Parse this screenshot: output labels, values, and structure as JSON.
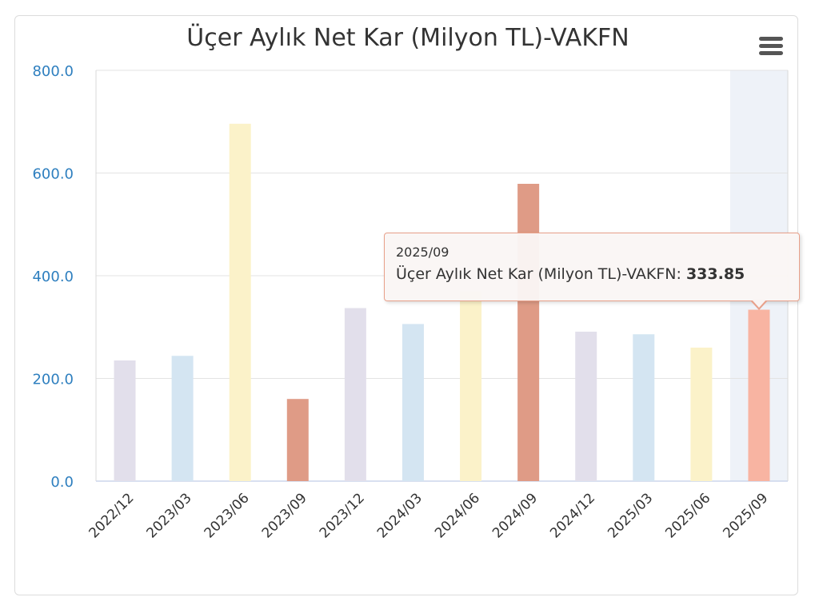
{
  "chart_data": {
    "type": "bar",
    "title": "Üçer Aylık Net Kar (Milyon TL)-VAKFN",
    "xlabel": "",
    "ylabel": "",
    "ylim": [
      0,
      800
    ],
    "yticks": [
      "0.0",
      "200.0",
      "400.0",
      "600.0",
      "800.0"
    ],
    "grid": true,
    "categories": [
      "2022/12",
      "2023/03",
      "2023/06",
      "2023/09",
      "2023/12",
      "2024/03",
      "2024/06",
      "2024/09",
      "2024/12",
      "2025/03",
      "2025/06",
      "2025/09"
    ],
    "series": [
      {
        "values": [
          235,
          244,
          696,
          160,
          337,
          306,
          370,
          579,
          291,
          286,
          260,
          333.85
        ]
      }
    ],
    "bar_colors": [
      "#e2dfeb",
      "#d4e5f2",
      "#fbf2c9",
      "#df9b86",
      "#e2dfeb",
      "#d4e5f2",
      "#fbf2c9",
      "#df9b86",
      "#e2dfeb",
      "#d4e5f2",
      "#fbf2c9",
      "#f8b4a2"
    ],
    "highlight_index": 11,
    "highlight_band_color": "#eef2f8",
    "axis_label_color": "#2e7fbf"
  },
  "tooltip": {
    "header": "2025/09",
    "series_label": "Üçer Aylık Net Kar (Milyon TL)-VAKFN:",
    "value": "333.85"
  },
  "menu": {
    "icon": "hamburger-menu-icon"
  }
}
